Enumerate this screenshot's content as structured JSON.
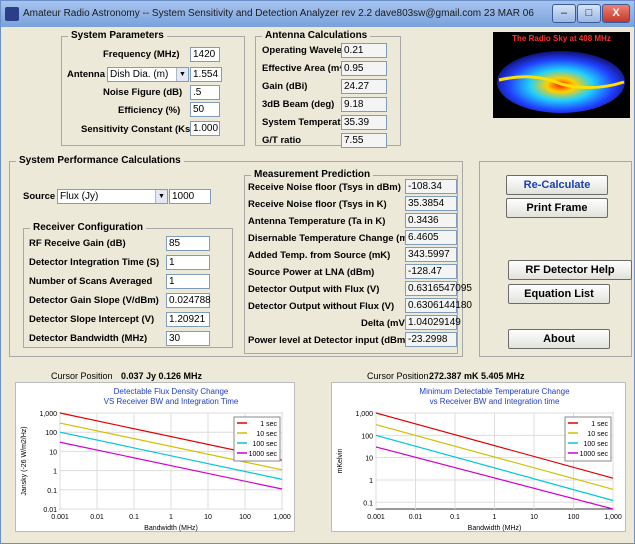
{
  "window": {
    "title": "Amateur Radio Astronomy -- System Sensitivity and Detection Analyzer      rev 2.2  dave803sw@gmail.com 23 MAR 06",
    "min": "–",
    "max": "□",
    "close": "X"
  },
  "system_params": {
    "title": "System Parameters",
    "frequency_label": "Frequency (MHz)",
    "frequency": "1420",
    "antenna_label": "Antenna",
    "antenna_select": "Dish Dia. (m)",
    "antenna_value": "1.554",
    "noise_label": "Noise Figure (dB)",
    "noise": ".5",
    "efficiency_label": "Efficiency (%)",
    "efficiency": "50",
    "ks_label": "Sensitivity Constant (Ks)",
    "ks": "1.000"
  },
  "antenna_calc": {
    "title": "Antenna Calculations",
    "rows": [
      {
        "label": "Operating Wavelength (m)",
        "value": "0.21"
      },
      {
        "label": "Effective  Area (m^2)",
        "value": "0.95"
      },
      {
        "label": "Gain (dBi)",
        "value": "24.27"
      },
      {
        "label": "3dB Beam (deg)",
        "value": "9.18"
      },
      {
        "label": "System Temperature (K)",
        "value": "35.39"
      },
      {
        "label": "G/T ratio",
        "value": "7.55"
      }
    ]
  },
  "sky_map": {
    "title": "The Radio Sky at 408 MHz"
  },
  "performance": {
    "title": "System Performance Calculations",
    "source_label": "Source",
    "source_select": "Flux (Jy)",
    "source_value": "1000"
  },
  "receiver": {
    "title": "Receiver Configuration",
    "rows": [
      {
        "label": "RF Receive Gain (dB)",
        "value": "85"
      },
      {
        "label": "Detector Integration Time (S)",
        "value": "1"
      },
      {
        "label": "Number of Scans Averaged",
        "value": "1"
      },
      {
        "label": "Detector Gain Slope (V/dBm)",
        "value": "0.024788"
      },
      {
        "label": "Detector Slope Intercept (V)",
        "value": "1.20921"
      },
      {
        "label": "Detector Bandwidth (MHz)",
        "value": "30"
      }
    ]
  },
  "measurement": {
    "title": "Measurement Prediction",
    "rows": [
      {
        "label": "Receive Noise floor (Tsys in dBm)",
        "value": "-108.34"
      },
      {
        "label": "Receive Noise floor (Tsys in K)",
        "value": "35.3854"
      },
      {
        "label": "Antenna Temperature  (Ta in K)",
        "value": "0.3436"
      },
      {
        "label": "Disernable Temperature Change (mK)",
        "value": "6.4605"
      },
      {
        "label": "Added Temp. from Source (mK)",
        "value": "343.5997"
      },
      {
        "label": "Source Power at LNA (dBm)",
        "value": "-128.47"
      },
      {
        "label": "Detector Output with Flux (V)",
        "value": "0.6316547095"
      },
      {
        "label": "Detector Output without  Flux (V)",
        "value": "0.6306144180"
      },
      {
        "label": "Delta (mV)",
        "value": "1.04029149"
      },
      {
        "label": "Power level at Detector input (dBm)",
        "value": "-23.2998"
      }
    ]
  },
  "buttons": {
    "recalc": "Re-Calculate",
    "print": "Print Frame",
    "rf_help": "RF Detector Help",
    "equations": "Equation List",
    "about": "About"
  },
  "cursor_left": {
    "label": "Cursor Position",
    "value": "0.037 Jy 0.126 MHz"
  },
  "cursor_right": {
    "label": "Cursor Position",
    "value": "272.387 mK  5.405 MHz"
  },
  "colors": {
    "1 sec": "#e00000",
    "10 sec": "#d0c000",
    "100 sec": "#00c8d8",
    "1000 sec": "#d000d0"
  },
  "chart_data": [
    {
      "type": "line",
      "title": "Detectable Flux Density Change",
      "subtitle": "VS Receiver BW and Integration Time",
      "xlabel": "Bandwidth (MHz)",
      "ylabel": "Jansky (-26 W/m2/Hz)",
      "x_ticks": [
        "0.001",
        "0.01",
        "0.1",
        "1",
        "10",
        "100",
        "1,000"
      ],
      "y_ticks": [
        "0.01",
        "0.1",
        "1",
        "10",
        "100",
        "1,000"
      ],
      "xlim": [
        0.001,
        1000
      ],
      "ylim": [
        0.01,
        1000
      ],
      "log_x": true,
      "log_y": true,
      "legend_position": "top-right",
      "series": [
        {
          "name": "1 sec",
          "x": [
            0.001,
            1000
          ],
          "y": [
            1000,
            3.5
          ]
        },
        {
          "name": "10 sec",
          "x": [
            0.001,
            1000
          ],
          "y": [
            300,
            1.1
          ]
        },
        {
          "name": "100 sec",
          "x": [
            0.001,
            1000
          ],
          "y": [
            100,
            0.35
          ]
        },
        {
          "name": "1000 sec",
          "x": [
            0.001,
            1000
          ],
          "y": [
            30,
            0.11
          ]
        }
      ]
    },
    {
      "type": "line",
      "title": "Minimum Detectable Temperature Change",
      "subtitle": "vs Receiver BW and Integration time",
      "xlabel": "Bandwidth (MHz)",
      "ylabel": "mKelvin",
      "x_ticks": [
        "0.001",
        "0.01",
        "0.1",
        "1",
        "10",
        "100",
        "1,000"
      ],
      "y_ticks": [
        "0.1",
        "1",
        "10",
        "100",
        "1,000"
      ],
      "xlim": [
        0.001,
        1000
      ],
      "ylim": [
        0.05,
        1000
      ],
      "log_x": true,
      "log_y": true,
      "legend_position": "top-right",
      "series": [
        {
          "name": "1 sec",
          "x": [
            0.001,
            1000
          ],
          "y": [
            1000,
            1.2
          ]
        },
        {
          "name": "10 sec",
          "x": [
            0.001,
            1000
          ],
          "y": [
            300,
            0.38
          ]
        },
        {
          "name": "100 sec",
          "x": [
            0.001,
            1000
          ],
          "y": [
            100,
            0.12
          ]
        },
        {
          "name": "1000 sec",
          "x": [
            0.001,
            1000
          ],
          "y": [
            30,
            0.05
          ]
        }
      ]
    }
  ]
}
